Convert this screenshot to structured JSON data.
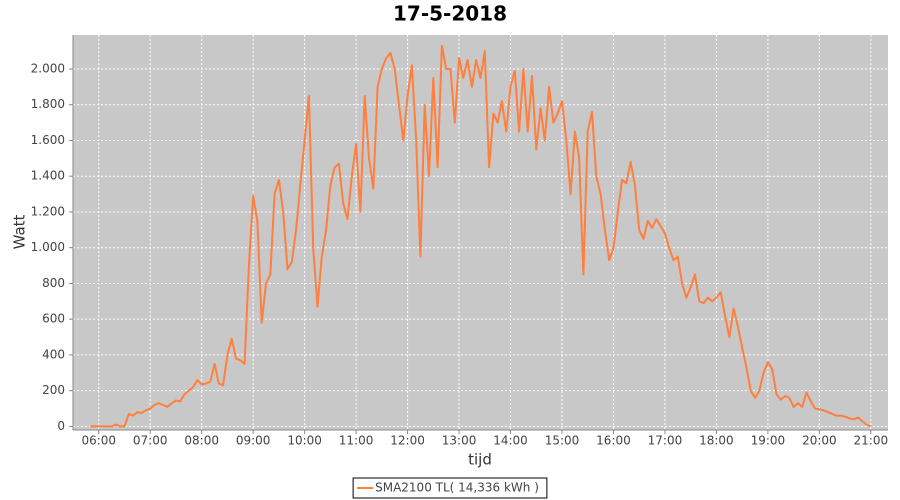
{
  "chart_data": {
    "type": "line",
    "title": "17-5-2018",
    "x_label": "tijd",
    "y_label": "Watt",
    "x": [
      "05:50",
      "05:55",
      "06:00",
      "06:05",
      "06:10",
      "06:15",
      "06:20",
      "06:25",
      "06:30",
      "06:35",
      "06:40",
      "06:45",
      "06:50",
      "06:55",
      "07:00",
      "07:05",
      "07:10",
      "07:15",
      "07:20",
      "07:25",
      "07:30",
      "07:35",
      "07:40",
      "07:45",
      "07:50",
      "07:55",
      "08:00",
      "08:05",
      "08:10",
      "08:15",
      "08:20",
      "08:25",
      "08:30",
      "08:35",
      "08:40",
      "08:45",
      "08:50",
      "08:55",
      "09:00",
      "09:05",
      "09:10",
      "09:15",
      "09:20",
      "09:25",
      "09:30",
      "09:35",
      "09:40",
      "09:45",
      "09:50",
      "09:55",
      "10:00",
      "10:05",
      "10:10",
      "10:15",
      "10:20",
      "10:25",
      "10:30",
      "10:35",
      "10:40",
      "10:45",
      "10:50",
      "10:55",
      "11:00",
      "11:05",
      "11:10",
      "11:15",
      "11:20",
      "11:25",
      "11:30",
      "11:35",
      "11:40",
      "11:45",
      "11:50",
      "11:55",
      "12:00",
      "12:05",
      "12:10",
      "12:15",
      "12:20",
      "12:25",
      "12:30",
      "12:35",
      "12:40",
      "12:45",
      "12:50",
      "12:55",
      "13:00",
      "13:05",
      "13:10",
      "13:15",
      "13:20",
      "13:25",
      "13:30",
      "13:35",
      "13:40",
      "13:45",
      "13:50",
      "13:55",
      "14:00",
      "14:05",
      "14:10",
      "14:15",
      "14:20",
      "14:25",
      "14:30",
      "14:35",
      "14:40",
      "14:45",
      "14:50",
      "14:55",
      "15:00",
      "15:05",
      "15:10",
      "15:15",
      "15:20",
      "15:25",
      "15:30",
      "15:35",
      "15:40",
      "15:45",
      "15:50",
      "15:55",
      "16:00",
      "16:05",
      "16:10",
      "16:15",
      "16:20",
      "16:25",
      "16:30",
      "16:35",
      "16:40",
      "16:45",
      "16:50",
      "16:55",
      "17:00",
      "17:05",
      "17:10",
      "17:15",
      "17:20",
      "17:25",
      "17:30",
      "17:35",
      "17:40",
      "17:45",
      "17:50",
      "17:55",
      "18:00",
      "18:05",
      "18:10",
      "18:15",
      "18:20",
      "18:25",
      "18:30",
      "18:35",
      "18:40",
      "18:45",
      "18:50",
      "18:55",
      "19:00",
      "19:05",
      "19:10",
      "19:15",
      "19:20",
      "19:25",
      "19:30",
      "19:35",
      "19:40",
      "19:45",
      "19:50",
      "19:55",
      "20:00",
      "20:05",
      "20:10",
      "20:15",
      "20:20",
      "20:25",
      "20:30",
      "20:35",
      "20:40",
      "20:45",
      "20:50",
      "20:55",
      "21:00"
    ],
    "series": [
      {
        "name": "SMA2100 TL( 14,336 kWh )",
        "color": "#ff7f3f",
        "values": [
          0,
          0,
          0,
          0,
          0,
          0,
          10,
          0,
          0,
          70,
          60,
          80,
          75,
          90,
          100,
          120,
          130,
          120,
          110,
          130,
          145,
          140,
          180,
          200,
          220,
          260,
          235,
          240,
          250,
          350,
          240,
          230,
          400,
          490,
          380,
          370,
          350,
          900,
          1290,
          1150,
          580,
          800,
          850,
          1300,
          1380,
          1200,
          880,
          920,
          1100,
          1350,
          1600,
          1850,
          1000,
          670,
          950,
          1100,
          1350,
          1450,
          1470,
          1250,
          1160,
          1400,
          1580,
          1200,
          1850,
          1500,
          1330,
          1900,
          2000,
          2060,
          2090,
          2000,
          1800,
          1600,
          1850,
          2020,
          1600,
          950,
          1800,
          1400,
          1950,
          1450,
          2130,
          2000,
          2000,
          1700,
          2060,
          1950,
          2050,
          1900,
          2050,
          1950,
          2100,
          1450,
          1750,
          1700,
          1820,
          1650,
          1900,
          1990,
          1650,
          2000,
          1650,
          1960,
          1550,
          1780,
          1600,
          1900,
          1700,
          1750,
          1820,
          1600,
          1300,
          1650,
          1500,
          850,
          1650,
          1760,
          1400,
          1300,
          1100,
          930,
          1000,
          1200,
          1380,
          1360,
          1480,
          1350,
          1100,
          1050,
          1150,
          1110,
          1160,
          1120,
          1080,
          1000,
          930,
          950,
          800,
          720,
          780,
          850,
          700,
          690,
          720,
          700,
          720,
          750,
          620,
          500,
          660,
          560,
          440,
          330,
          200,
          160,
          200,
          300,
          360,
          320,
          180,
          150,
          170,
          160,
          110,
          130,
          110,
          190,
          140,
          100,
          95,
          90,
          80,
          70,
          60,
          60,
          55,
          45,
          40,
          50,
          30,
          10,
          0
        ]
      }
    ],
    "xlim": [
      "05:30",
      "21:20"
    ],
    "xticks": [
      "06:00",
      "07:00",
      "08:00",
      "09:00",
      "10:00",
      "11:00",
      "12:00",
      "13:00",
      "14:00",
      "15:00",
      "16:00",
      "17:00",
      "18:00",
      "19:00",
      "20:00",
      "21:00"
    ],
    "ylim": [
      -20,
      2190
    ],
    "yticks": [
      0,
      200,
      400,
      600,
      800,
      {
        "value": 1000,
        "label": "1.000"
      },
      {
        "value": 1200,
        "label": "1.200"
      },
      {
        "value": 1400,
        "label": "1.400"
      },
      {
        "value": 1600,
        "label": "1.600"
      },
      {
        "value": 1800,
        "label": "1.800"
      },
      {
        "value": 2000,
        "label": "2.000"
      }
    ],
    "grid": true,
    "legend": "bottom"
  }
}
